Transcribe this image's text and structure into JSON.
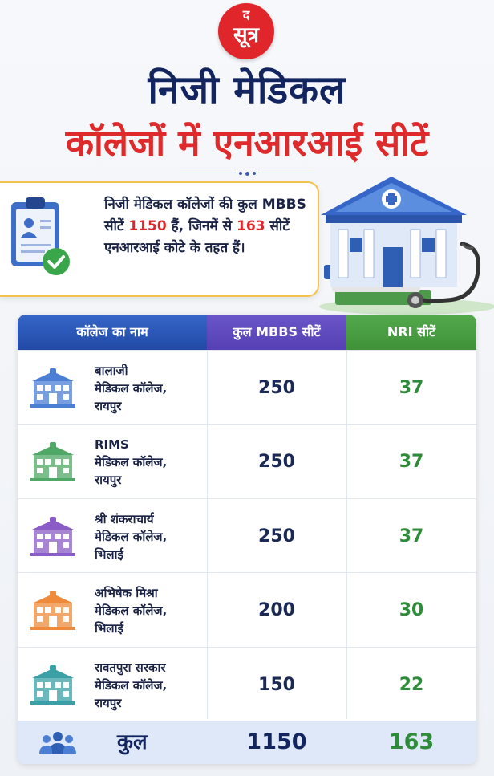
{
  "logo": {
    "top": "द",
    "bottom": "सूत्र"
  },
  "title": {
    "line1": "निजी मेडिकल",
    "line2": "कॉलेजों में एनआरआई सीटें"
  },
  "info": {
    "part1": "निजी मेडिकल कॉलेजों की कुल MBBS सीटें ",
    "total": "1150",
    "part2": " हैं, जिनमें से ",
    "nri": "163",
    "part3": " सीटें एनआरआई कोटे के तहत हैं।"
  },
  "table": {
    "headers": {
      "college": "कॉलेज का नाम",
      "mbbs": "कुल MBBS सीटें",
      "nri": "NRI सीटें"
    },
    "rows": [
      {
        "name1": "बालाजी",
        "name2": "मेडिकल कॉलेज,",
        "name3": "रायपुर",
        "mbbs": "250",
        "nri": "37",
        "icon": "building-icon",
        "color": "#4a7fd4"
      },
      {
        "name1": "RIMS",
        "name2": "मेडिकल कॉलेज,",
        "name3": "रायपुर",
        "mbbs": "250",
        "nri": "37",
        "icon": "building-icon",
        "color": "#4fa865"
      },
      {
        "name1": "श्री शंकराचार्य",
        "name2": "मेडिकल कॉलेज,",
        "name3": "भिलाई",
        "mbbs": "250",
        "nri": "37",
        "icon": "building-icon",
        "color": "#8a5cc6"
      },
      {
        "name1": "अभिषेक मिश्रा",
        "name2": "मेडिकल कॉलेज,",
        "name3": "भिलाई",
        "mbbs": "200",
        "nri": "30",
        "icon": "building-icon",
        "color": "#ee8a3a"
      },
      {
        "name1": "रावतपुरा सरकार",
        "name2": "मेडिकल कॉलेज,",
        "name3": "रायपुर",
        "mbbs": "150",
        "nri": "22",
        "icon": "building-icon",
        "color": "#3aa0a6"
      }
    ],
    "total": {
      "label": "कुल",
      "mbbs": "1150",
      "nri": "163",
      "icon": "people-icon"
    }
  }
}
